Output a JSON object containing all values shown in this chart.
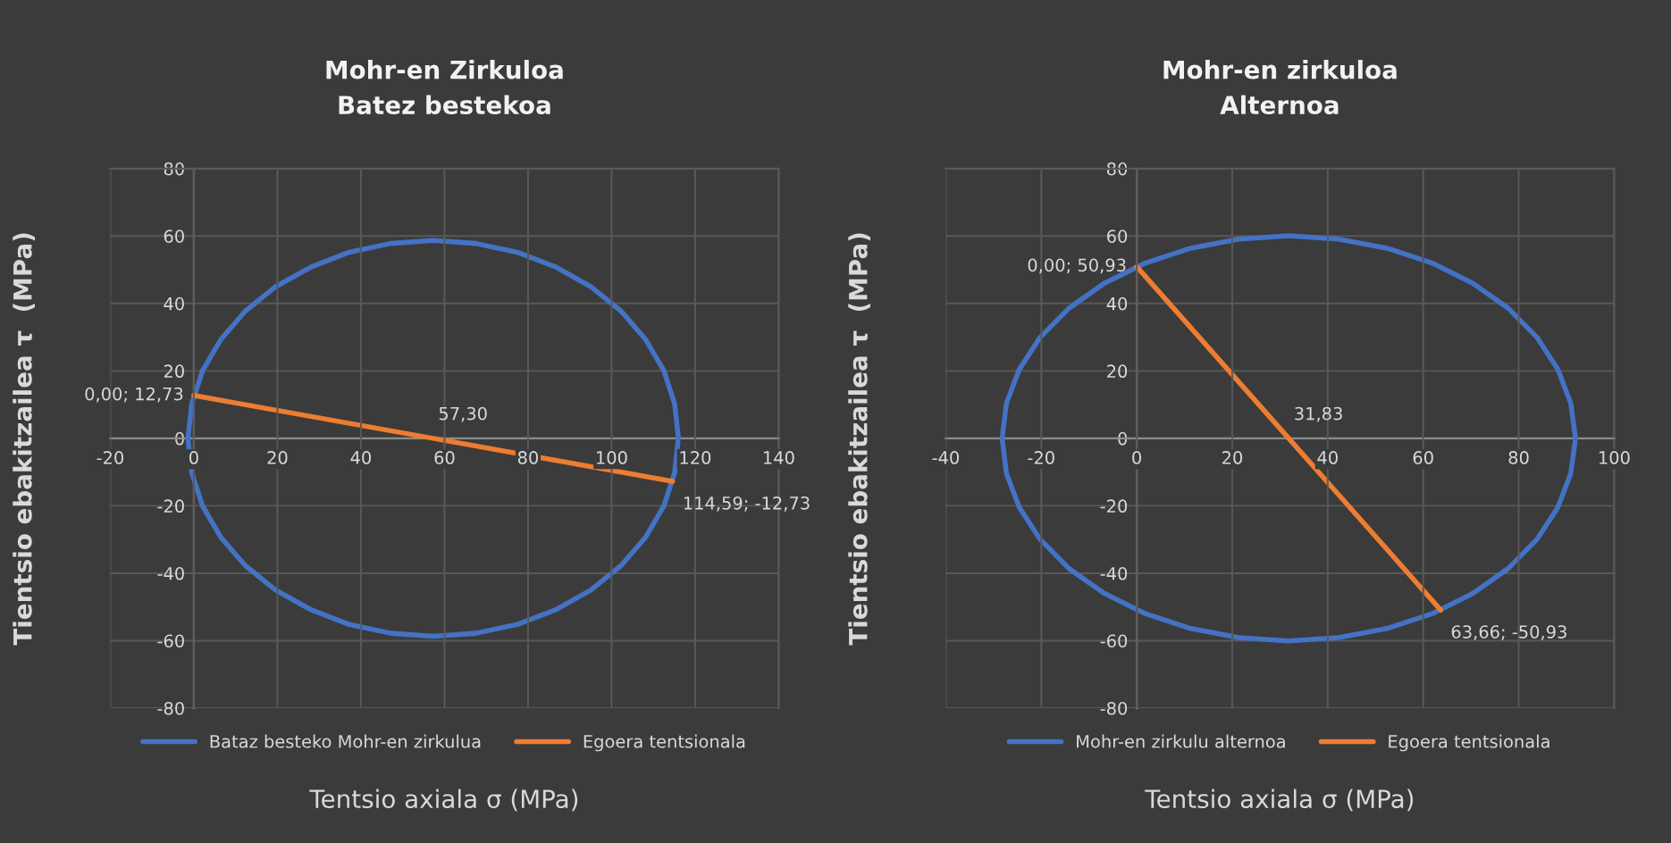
{
  "chart_data": [
    {
      "type": "line",
      "title": "Mohr-en Zirkuloa\nBatez bestekoa",
      "xlabel": "Tentsio axiala σ (MPa)",
      "ylabel": "Tientsio ebakitzailea τ  (MPa)",
      "xlim": [
        -20,
        140
      ],
      "xticks": [
        -20,
        0,
        20,
        40,
        60,
        80,
        100,
        120,
        140
      ],
      "ylim": [
        -80,
        80
      ],
      "yticks": [
        -80,
        -60,
        -40,
        -20,
        0,
        20,
        40,
        60,
        80
      ],
      "grid": true,
      "legend": "bottom",
      "marker": "none",
      "line_style": "solid",
      "series": [
        {
          "name": "Bataz besteko Mohr-en zirkulua",
          "color": "#4472c4",
          "x": [
            116.0,
            115.1,
            112.5,
            108.1,
            102.3,
            95.0,
            86.7,
            77.4,
            67.5,
            57.3,
            47.1,
            37.2,
            28.0,
            19.6,
            12.3,
            6.5,
            2.1,
            -0.5,
            -1.4,
            -0.5,
            2.1,
            6.5,
            12.3,
            19.6,
            28.0,
            37.2,
            47.1,
            57.3,
            67.5,
            77.4,
            86.7,
            95.0,
            102.3,
            108.1,
            112.5,
            115.1,
            115.9
          ],
          "values": [
            0,
            10.2,
            20.1,
            29.4,
            37.7,
            45.0,
            50.8,
            55.2,
            57.8,
            58.7,
            57.8,
            55.2,
            50.8,
            45.0,
            37.7,
            29.4,
            20.1,
            10.2,
            0,
            -10.2,
            -20.1,
            -29.4,
            -37.7,
            -45.0,
            -50.8,
            -55.2,
            -57.8,
            -58.7,
            -57.8,
            -55.2,
            -50.8,
            -45.0,
            -37.7,
            -29.4,
            -20.1,
            -10.2,
            -1.0
          ]
        },
        {
          "name": "Egoera tentsionala",
          "color": "#ed7d31",
          "x": [
            0,
            57.3,
            114.59
          ],
          "values": [
            12.73,
            0,
            -12.73
          ]
        }
      ],
      "annotations": [
        {
          "text": "0,00; 12,73",
          "x": 0,
          "y": 12.73
        },
        {
          "text": "57,30",
          "x": 57.3,
          "y": 0
        },
        {
          "text": "114,59; -12,73",
          "x": 114.59,
          "y": -12.73
        }
      ]
    },
    {
      "type": "line",
      "title": "Mohr-en zirkuloa\nAlternoa",
      "xlabel": "Tentsio axiala σ (MPa)",
      "ylabel": "Tientsio ebakitzailea τ  (MPa)",
      "xlim": [
        -40,
        100
      ],
      "xticks": [
        -40,
        -20,
        0,
        20,
        40,
        60,
        80,
        100
      ],
      "ylim": [
        -80,
        80
      ],
      "yticks": [
        -80,
        -60,
        -40,
        -20,
        0,
        20,
        40,
        60,
        80
      ],
      "grid": true,
      "legend": "bottom",
      "marker": "none",
      "line_style": "solid",
      "series": [
        {
          "name": "Mohr-en zirkulu alternoa",
          "color": "#4472c4",
          "x": [
            91.9,
            90.9,
            88.2,
            83.8,
            77.8,
            70.4,
            61.9,
            52.4,
            42.2,
            31.8,
            21.4,
            11.3,
            1.8,
            -6.8,
            -14.2,
            -20.2,
            -24.6,
            -27.3,
            -28.2,
            -27.3,
            -24.6,
            -20.2,
            -14.2,
            -6.8,
            1.8,
            11.3,
            21.4,
            31.8,
            42.2,
            52.4,
            61.9,
            70.4,
            77.8,
            83.8,
            88.2,
            90.9,
            91.8
          ],
          "values": [
            0,
            10.4,
            20.5,
            30.0,
            38.6,
            46.0,
            52.0,
            56.4,
            59.1,
            60.1,
            59.1,
            56.4,
            52.0,
            46.0,
            38.6,
            30.0,
            20.5,
            10.4,
            0,
            -10.4,
            -20.5,
            -30.0,
            -38.6,
            -46.0,
            -52.0,
            -56.4,
            -59.1,
            -60.1,
            -59.1,
            -56.4,
            -52.0,
            -46.0,
            -38.6,
            -30.0,
            -20.5,
            -10.4,
            -1.0
          ]
        },
        {
          "name": "Egoera tentsionala",
          "color": "#ed7d31",
          "x": [
            0,
            31.83,
            63.66
          ],
          "values": [
            50.93,
            0,
            -50.93
          ]
        }
      ],
      "annotations": [
        {
          "text": "0,00; 50,93",
          "x": 0,
          "y": 50.93
        },
        {
          "text": "31,83",
          "x": 31.83,
          "y": 0
        },
        {
          "text": "63,66; -50,93",
          "x": 63.66,
          "y": -50.93
        }
      ]
    }
  ]
}
